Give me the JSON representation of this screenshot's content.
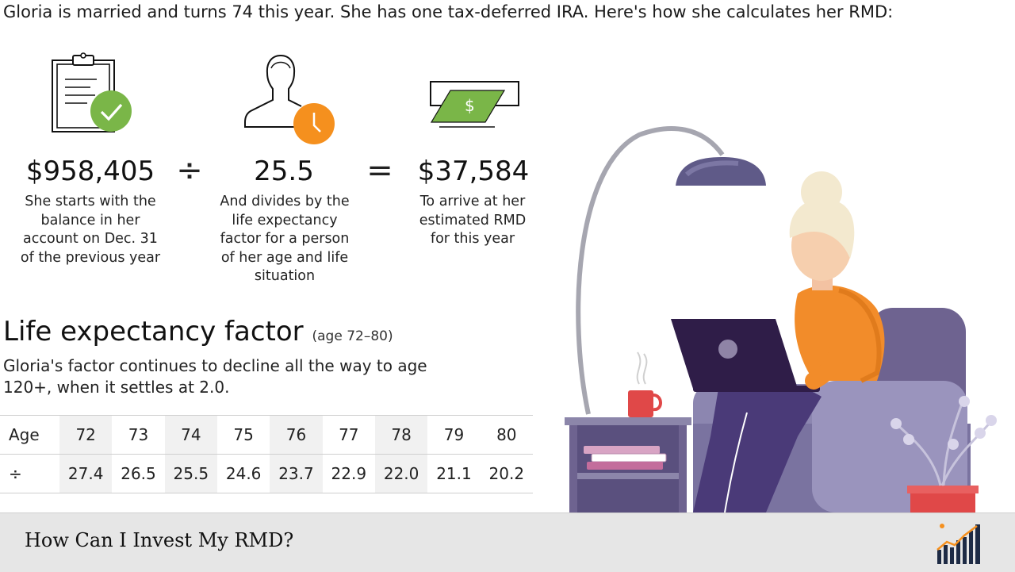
{
  "intro": "Gloria is married and turns 74 this year. She has one tax-deferred IRA. Here's how she calculates her RMD:",
  "steps": [
    {
      "value": "$958,405",
      "caption": [
        "She starts with the",
        "balance in her",
        "account on Dec. 31",
        "of the previous year"
      ],
      "icon": "clipboard-check-icon"
    },
    {
      "value": "25.5",
      "caption": [
        "And divides by the",
        "life expectancy",
        "factor for a person",
        "of her age and life",
        "situation"
      ],
      "icon": "person-clock-icon"
    },
    {
      "value": "$37,584",
      "caption": [
        "To arrive at her",
        "estimated RMD",
        "for this year"
      ],
      "icon": "money-icon"
    }
  ],
  "operators": {
    "divide": "÷",
    "equals": "="
  },
  "factor_section": {
    "title": "Life expectancy factor",
    "subtitle": "(age 72–80)",
    "description": "Gloria's factor continues to decline all the way to age 120+, when it settles at 2.0."
  },
  "table": {
    "row1_label": "Age",
    "row2_label": "÷",
    "ages": [
      "72",
      "73",
      "74",
      "75",
      "76",
      "77",
      "78",
      "79",
      "80"
    ],
    "factors": [
      "27.4",
      "26.5",
      "25.5",
      "24.6",
      "23.7",
      "22.9",
      "22.0",
      "21.1",
      "20.2"
    ]
  },
  "footer": {
    "title": "How Can I Invest My RMD?"
  },
  "colors": {
    "green": "#7ab648",
    "orange": "#f5901e",
    "purple": "#6e6390",
    "dark": "#1e2b45"
  }
}
